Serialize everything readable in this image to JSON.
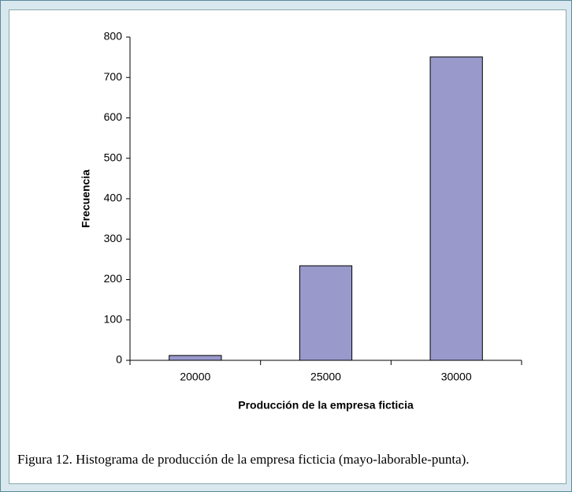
{
  "chart_data": {
    "type": "bar",
    "categories": [
      "20000",
      "25000",
      "30000"
    ],
    "values": [
      12,
      234,
      751
    ],
    "color": "#9999cc",
    "xlabel": "Producción de la empresa ficticia",
    "ylabel": "Frecuencia",
    "ylim": [
      0,
      800
    ],
    "yticks": [
      0,
      100,
      200,
      300,
      400,
      500,
      600,
      700,
      800
    ],
    "grid": false
  },
  "caption": "Figura 12. Histograma de producción de la empresa ficticia (mayo-laborable-punta)."
}
